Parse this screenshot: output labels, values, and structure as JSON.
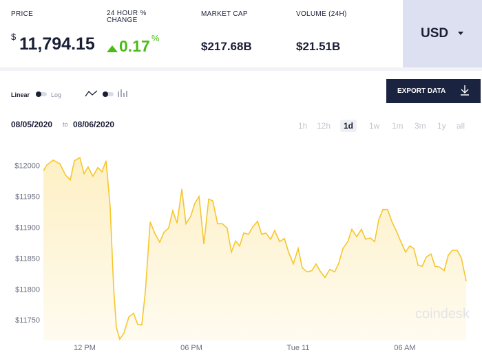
{
  "header": {
    "price": {
      "label": "PRICE",
      "currency": "$",
      "value": "11,794.15"
    },
    "change": {
      "label": "24 HOUR % CHANGE",
      "value": "0.17",
      "unit": "%"
    },
    "market_cap": {
      "label": "MARKET CAP",
      "value": "$217.68B"
    },
    "volume": {
      "label": "VOLUME (24H)",
      "value": "$21.51B"
    },
    "currency_button": "USD"
  },
  "controls": {
    "linear": "Linear",
    "log": "Log",
    "export": "EXPORT DATA",
    "date_from": "08/05/2020",
    "date_sep": "to",
    "date_to": "08/06/2020",
    "ranges": [
      "1h",
      "12h",
      "1d",
      "1w",
      "1m",
      "3m",
      "1y",
      "all"
    ],
    "selected_range": "1d"
  },
  "chart_data": {
    "type": "area",
    "color": "#f6c62c",
    "watermark": "coindesk",
    "x": [
      9.68,
      9.87,
      10.22,
      10.61,
      10.92,
      11.19,
      11.42,
      11.73,
      11.96,
      12.19,
      12.46,
      12.74,
      12.97,
      13.2,
      13.43,
      13.63,
      13.78,
      13.97,
      14.21,
      14.48,
      14.75,
      14.98,
      15.21,
      15.41,
      15.68,
      15.95,
      16.22,
      16.45,
      16.72,
      16.95,
      17.19,
      17.46,
      17.69,
      17.96,
      18.19,
      18.43,
      18.7,
      18.97,
      19.2,
      19.47,
      19.74,
      20.01,
      20.25,
      20.48,
      20.71,
      20.94,
      21.21,
      21.45,
      21.72,
      21.95,
      22.18,
      22.45,
      22.68,
      22.96,
      23.23,
      23.46,
      23.73,
      24,
      24.23,
      24.5,
      24.77,
      25.01,
      25.24,
      25.51,
      25.78,
      26.05,
      26.28,
      26.52,
      26.79,
      27.02,
      27.29,
      27.56,
      27.79,
      28.06,
      28.3,
      28.53,
      28.76,
      29.03,
      29.26,
      29.54,
      29.77,
      30.04,
      30.27,
      30.5,
      30.74,
      30.97,
      31.2,
      31.47,
      31.7,
      31.94,
      32.21,
      32.44,
      32.67,
      32.94,
      33.17,
      33.45
    ],
    "values": [
      11993,
      12002,
      12010,
      12004,
      11986,
      11978,
      12009,
      12014,
      11988,
      11999,
      11984,
      11998,
      11991,
      12009,
      11936,
      11802,
      11739,
      11720,
      11730,
      11756,
      11762,
      11744,
      11743,
      11797,
      11910,
      11891,
      11877,
      11893,
      11900,
      11928,
      11908,
      11963,
      11907,
      11919,
      11940,
      11951,
      11874,
      11947,
      11944,
      11907,
      11907,
      11900,
      11861,
      11879,
      11871,
      11892,
      11890,
      11902,
      11911,
      11890,
      11892,
      11882,
      11896,
      11878,
      11883,
      11861,
      11842,
      11867,
      11836,
      11829,
      11831,
      11842,
      11830,
      11820,
      11833,
      11829,
      11843,
      11867,
      11878,
      11898,
      11886,
      11898,
      11882,
      11884,
      11878,
      11913,
      11930,
      11930,
      11911,
      11894,
      11878,
      11861,
      11871,
      11867,
      11840,
      11838,
      11853,
      11858,
      11838,
      11837,
      11831,
      11856,
      11864,
      11864,
      11852,
      11814
    ],
    "xlim": [
      9.6,
      33.6
    ],
    "xticks": [
      {
        "value": 12,
        "label": "12 PM"
      },
      {
        "value": 18,
        "label": "06 PM"
      },
      {
        "value": 24,
        "label": "Tue 11"
      },
      {
        "value": 30,
        "label": "06 AM"
      }
    ],
    "ylim": [
      11718,
      12041
    ],
    "yticks": [
      {
        "value": 11750,
        "label": "$11750"
      },
      {
        "value": 11800,
        "label": "$11800"
      },
      {
        "value": 11850,
        "label": "$11850"
      },
      {
        "value": 11900,
        "label": "$11900"
      },
      {
        "value": 11950,
        "label": "$11950"
      },
      {
        "value": 12000,
        "label": "$12000"
      }
    ],
    "grid": false
  }
}
